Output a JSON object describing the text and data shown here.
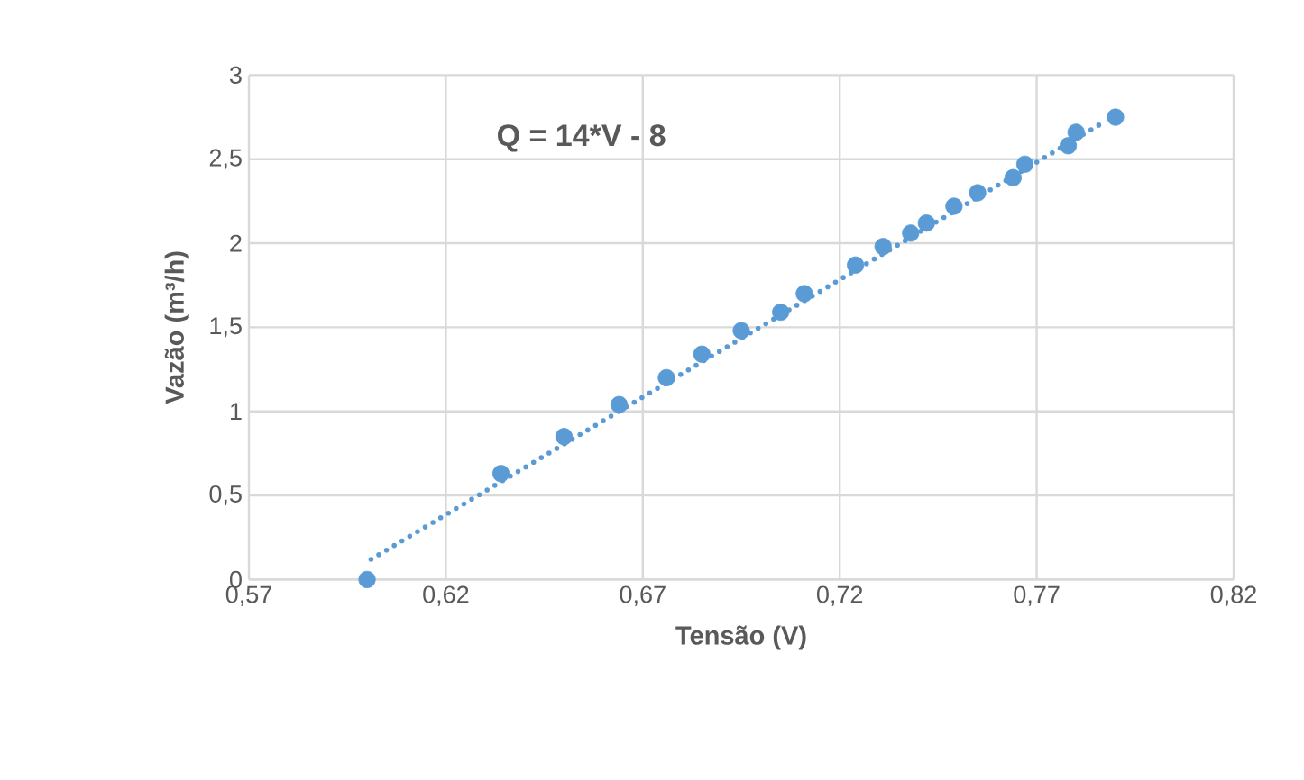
{
  "chart_data": {
    "type": "scatter",
    "xlabel": "Tensão (V)",
    "ylabel": "Vazão (m³/h)",
    "annotations": [
      "Q = 14*V - 8"
    ],
    "xlim": [
      0.57,
      0.82
    ],
    "xticks": [
      {
        "value": 0.57,
        "label": "0,57"
      },
      {
        "value": 0.62,
        "label": "0,62"
      },
      {
        "value": 0.67,
        "label": "0,67"
      },
      {
        "value": 0.72,
        "label": "0,72"
      },
      {
        "value": 0.77,
        "label": "0,77"
      },
      {
        "value": 0.82,
        "label": "0,82"
      }
    ],
    "ylim": [
      0,
      3
    ],
    "yticks": [
      0,
      {
        "value": 0.5,
        "label": "0,5"
      },
      1,
      {
        "value": 1.5,
        "label": "1,5"
      },
      2,
      {
        "value": 2.5,
        "label": "2,5"
      },
      3
    ],
    "grid": true,
    "series": [
      {
        "color": "#5b9bd5",
        "marker": "circle",
        "x": [
          0.6,
          0.634,
          0.65,
          0.664,
          0.676,
          0.685,
          0.695,
          0.705,
          0.711,
          0.724,
          0.731,
          0.738,
          0.742,
          0.749,
          0.755,
          0.764,
          0.767,
          0.778,
          0.78,
          0.79
        ],
        "values": [
          0,
          0.63,
          0.85,
          1.04,
          1.2,
          1.34,
          1.48,
          1.59,
          1.7,
          1.87,
          1.98,
          2.06,
          2.12,
          2.22,
          2.3,
          2.39,
          2.47,
          2.58,
          2.66,
          2.75
        ]
      },
      {
        "type": "line",
        "color": "#5b9bd5",
        "marker": "none",
        "line_style": "dotted",
        "x": [
          0.601,
          0.787
        ],
        "values": [
          0.12,
          2.72
        ]
      }
    ]
  }
}
